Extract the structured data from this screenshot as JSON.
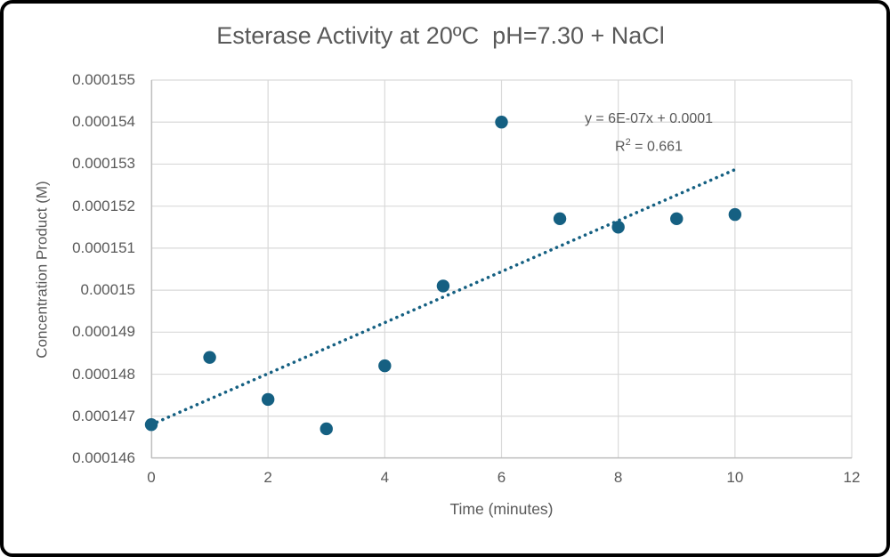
{
  "chart_data": {
    "type": "scatter",
    "title": "Esterase Activity at 20ºC  pH=7.30 + NaCl",
    "xlabel": "Time (minutes)",
    "ylabel": "Concentration Product (M)",
    "xlim": [
      0,
      12
    ],
    "ylim": [
      0.000146,
      0.000155
    ],
    "grid": true,
    "legend": false,
    "x_ticks": [
      {
        "value": 0,
        "label": "0"
      },
      {
        "value": 2,
        "label": "2"
      },
      {
        "value": 4,
        "label": "4"
      },
      {
        "value": 6,
        "label": "6"
      },
      {
        "value": 8,
        "label": "8"
      },
      {
        "value": 10,
        "label": "10"
      },
      {
        "value": 12,
        "label": "12"
      }
    ],
    "y_ticks": [
      {
        "value": 0.000146,
        "label": "0.000146"
      },
      {
        "value": 0.000147,
        "label": "0.000147"
      },
      {
        "value": 0.000148,
        "label": "0.000148"
      },
      {
        "value": 0.000149,
        "label": "0.000149"
      },
      {
        "value": 0.00015,
        "label": "0.00015"
      },
      {
        "value": 0.000151,
        "label": "0.000151"
      },
      {
        "value": 0.000152,
        "label": "0.000152"
      },
      {
        "value": 0.000153,
        "label": "0.000153"
      },
      {
        "value": 0.000154,
        "label": "0.000154"
      },
      {
        "value": 0.000155,
        "label": "0.000155"
      }
    ],
    "series": [
      {
        "name": "Concentration Product",
        "x": [
          0,
          1,
          2,
          3,
          4,
          5,
          6,
          7,
          8,
          9,
          10
        ],
        "y": [
          0.0001468,
          0.0001484,
          0.0001474,
          0.0001467,
          0.0001482,
          0.0001501,
          0.000154,
          0.0001517,
          0.0001515,
          0.0001517,
          0.0001518
        ]
      }
    ],
    "trendline": {
      "type": "linear",
      "style": "dotted",
      "x_start": 0,
      "y_start": 0.0001468,
      "x_end": 10.05,
      "y_end": 0.0001529,
      "equation": "y = 6E-07x + 0.0001",
      "r_squared": "0.661",
      "r2_prefix": "R",
      "r2_sup": "2",
      "r2_rest": " = 0.661"
    },
    "colors": {
      "marker": "#156082",
      "trendline": "#156082",
      "gridline": "#d9d9d9",
      "axis_line": "#bfbfbf",
      "text": "#595959",
      "frame_border": "#000000",
      "background": "#ffffff"
    }
  }
}
